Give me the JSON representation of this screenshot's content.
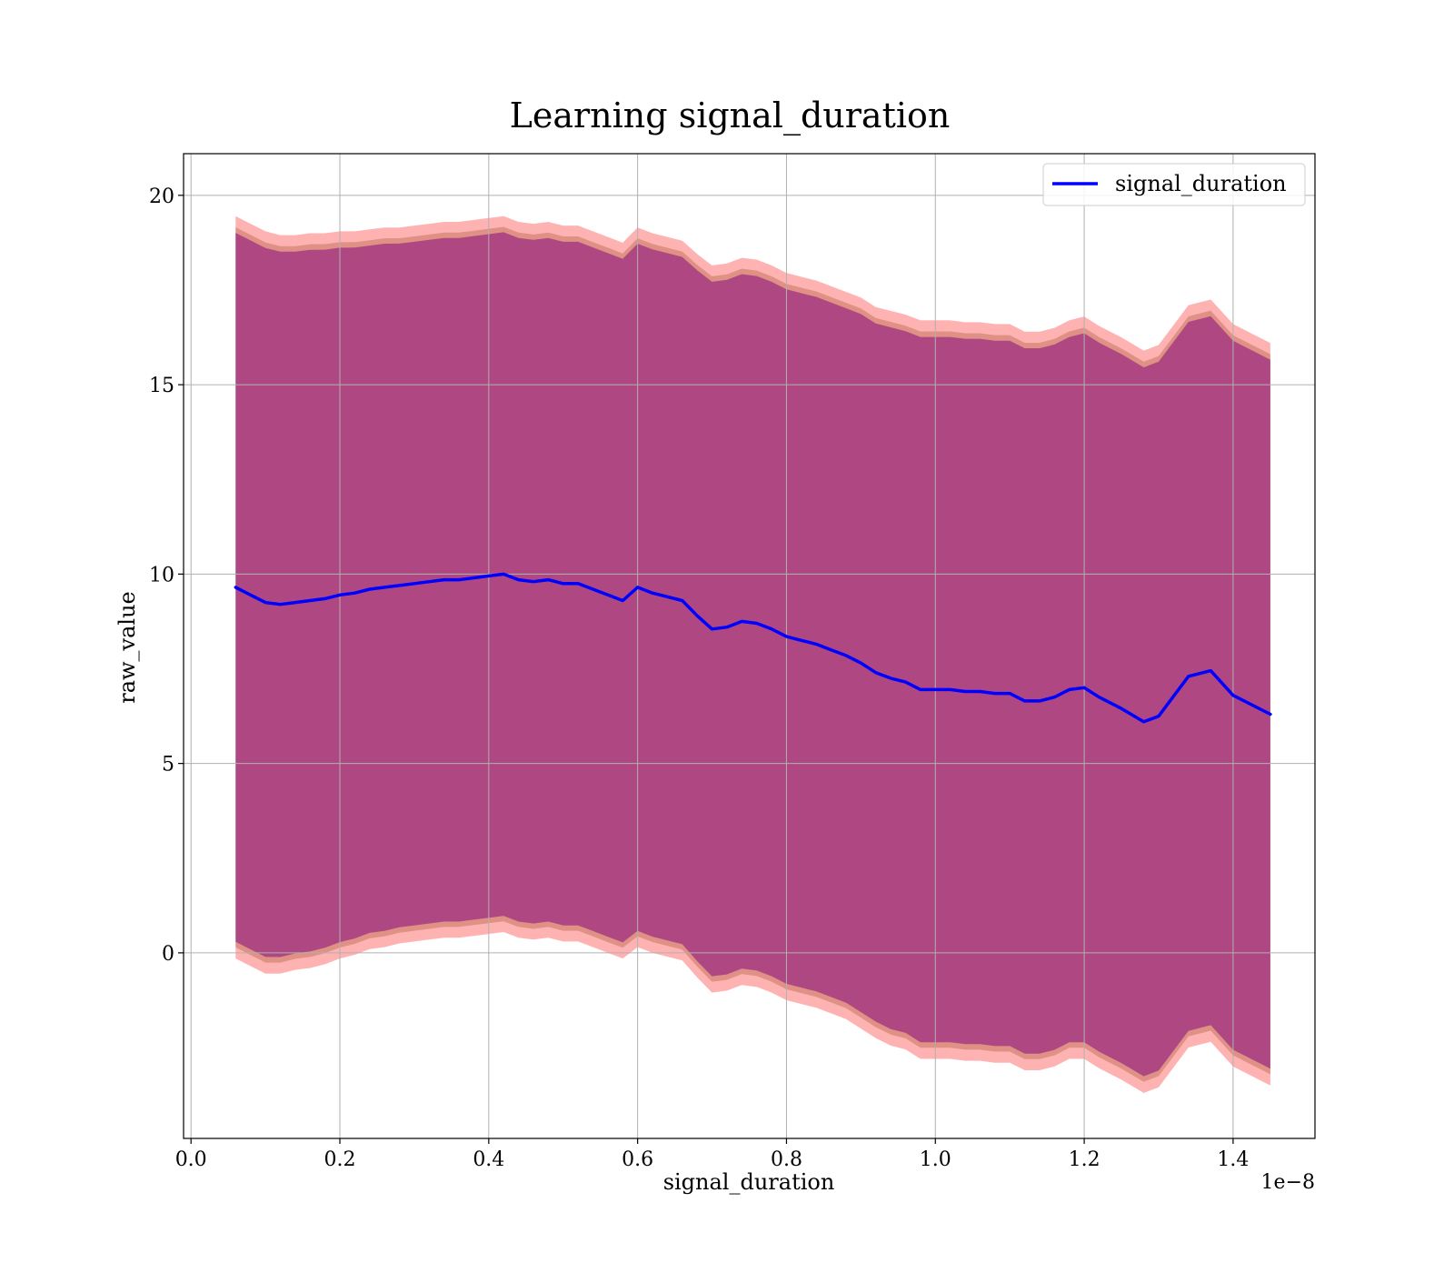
{
  "chart_data": {
    "type": "line",
    "title": "Learning signal_duration",
    "xlabel": "signal_duration",
    "ylabel": "raw_value",
    "x_offset_label": "1e−8",
    "xlim": [
      -0.01,
      1.51
    ],
    "ylim": [
      -4.9,
      21.1
    ],
    "x_ticks": [
      0.0,
      0.2,
      0.4,
      0.6,
      0.8,
      1.0,
      1.2,
      1.4
    ],
    "x_tick_labels": [
      "0.0",
      "0.2",
      "0.4",
      "0.6",
      "0.8",
      "1.0",
      "1.2",
      "1.4"
    ],
    "y_ticks": [
      0,
      5,
      10,
      15,
      20
    ],
    "y_tick_labels": [
      "0",
      "5",
      "10",
      "15",
      "20"
    ],
    "grid": true,
    "legend_position": "top-right",
    "colors": {
      "line": "#0000ff",
      "band_outer": "#ff0000",
      "band_middle": "#a0522d",
      "band_inner": "#800080"
    },
    "series": [
      {
        "name": "signal_duration",
        "x": [
          0.06,
          0.08,
          0.1,
          0.12,
          0.14,
          0.16,
          0.18,
          0.2,
          0.22,
          0.24,
          0.26,
          0.28,
          0.3,
          0.32,
          0.34,
          0.36,
          0.38,
          0.4,
          0.42,
          0.44,
          0.46,
          0.48,
          0.5,
          0.52,
          0.54,
          0.56,
          0.58,
          0.6,
          0.62,
          0.64,
          0.66,
          0.68,
          0.7,
          0.72,
          0.74,
          0.76,
          0.78,
          0.8,
          0.82,
          0.84,
          0.86,
          0.88,
          0.9,
          0.92,
          0.94,
          0.96,
          0.98,
          1.0,
          1.02,
          1.04,
          1.06,
          1.08,
          1.1,
          1.12,
          1.14,
          1.16,
          1.18,
          1.2,
          1.22,
          1.25,
          1.28,
          1.3,
          1.34,
          1.37,
          1.4,
          1.45
        ],
        "y": [
          9.65,
          9.45,
          9.25,
          9.2,
          9.25,
          9.3,
          9.35,
          9.45,
          9.5,
          9.6,
          9.65,
          9.7,
          9.75,
          9.8,
          9.85,
          9.85,
          9.9,
          9.95,
          10.0,
          9.85,
          9.8,
          9.85,
          9.75,
          9.75,
          9.6,
          9.45,
          9.3,
          9.65,
          9.5,
          9.4,
          9.3,
          8.9,
          8.55,
          8.6,
          8.75,
          8.7,
          8.55,
          8.35,
          8.25,
          8.15,
          8.0,
          7.85,
          7.65,
          7.4,
          7.25,
          7.15,
          6.95,
          6.95,
          6.95,
          6.9,
          6.9,
          6.85,
          6.85,
          6.65,
          6.65,
          6.75,
          6.95,
          7.0,
          6.75,
          6.45,
          6.1,
          6.25,
          7.3,
          7.45,
          6.8,
          6.3
        ],
        "std": [
          9.8,
          9.8,
          9.8,
          9.75,
          9.7,
          9.7,
          9.65,
          9.6,
          9.55,
          9.5,
          9.5,
          9.45,
          9.45,
          9.45,
          9.45,
          9.45,
          9.45,
          9.45,
          9.45,
          9.45,
          9.45,
          9.45,
          9.45,
          9.45,
          9.45,
          9.45,
          9.45,
          9.5,
          9.5,
          9.5,
          9.5,
          9.55,
          9.6,
          9.6,
          9.6,
          9.6,
          9.6,
          9.6,
          9.6,
          9.6,
          9.6,
          9.6,
          9.65,
          9.65,
          9.7,
          9.7,
          9.75,
          9.75,
          9.75,
          9.75,
          9.75,
          9.75,
          9.75,
          9.75,
          9.75,
          9.75,
          9.75,
          9.8,
          9.8,
          9.8,
          9.8,
          9.8,
          9.8,
          9.8,
          9.8,
          9.8
        ]
      }
    ]
  }
}
